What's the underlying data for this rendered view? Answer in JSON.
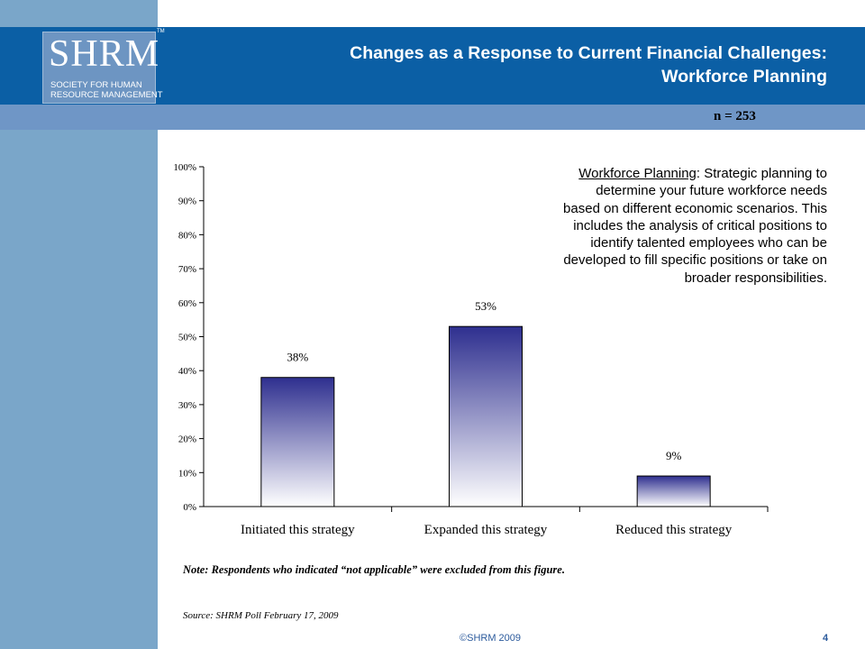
{
  "header": {
    "title_line1": "Changes as a Response to Current Financial Challenges:",
    "title_line2": "Workforce Planning",
    "sample_size": "n = 253"
  },
  "logo": {
    "wordmark": "SHRM",
    "tm": "TM",
    "line1": "SOCIETY FOR HUMAN",
    "line2": "RESOURCE MANAGEMENT"
  },
  "definition": {
    "term": "Workforce Planning",
    "text": ": Strategic planning to determine your future workforce needs based on different economic scenarios. This includes the analysis of critical positions to identify talented employees who can be developed to fill specific positions or take on broader responsibilities."
  },
  "note": "Note: Respondents who indicated “not applicable” were excluded from this figure.",
  "source": "Source: SHRM Poll February 17, 2009",
  "footer": {
    "copyright": "©SHRM 2009",
    "page": "4"
  },
  "colors": {
    "bar_top": "#2e2f8f",
    "bar_bottom": "#ffffff",
    "title_band": "#0b5fa5",
    "left_bar": "#7aa6c9"
  },
  "chart_data": {
    "type": "bar",
    "categories": [
      "Initiated this strategy",
      "Expanded this strategy",
      "Reduced this strategy"
    ],
    "values": [
      38,
      53,
      9
    ],
    "data_labels": [
      "38%",
      "53%",
      "9%"
    ],
    "yticks": [
      "0%",
      "10%",
      "20%",
      "30%",
      "40%",
      "50%",
      "60%",
      "70%",
      "80%",
      "90%",
      "100%"
    ],
    "ylim": [
      0,
      100
    ],
    "grid": false,
    "legend": "none"
  }
}
